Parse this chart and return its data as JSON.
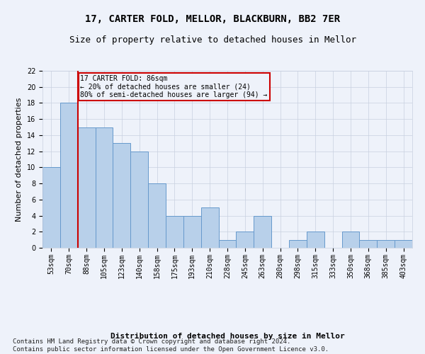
{
  "title": "17, CARTER FOLD, MELLOR, BLACKBURN, BB2 7ER",
  "subtitle": "Size of property relative to detached houses in Mellor",
  "xlabel": "Distribution of detached houses by size in Mellor",
  "ylabel": "Number of detached properties",
  "categories": [
    "53sqm",
    "70sqm",
    "88sqm",
    "105sqm",
    "123sqm",
    "140sqm",
    "158sqm",
    "175sqm",
    "193sqm",
    "210sqm",
    "228sqm",
    "245sqm",
    "263sqm",
    "280sqm",
    "298sqm",
    "315sqm",
    "333sqm",
    "350sqm",
    "368sqm",
    "385sqm",
    "403sqm"
  ],
  "values": [
    10,
    18,
    15,
    15,
    13,
    12,
    8,
    4,
    4,
    5,
    1,
    2,
    4,
    0,
    1,
    2,
    0,
    2,
    1,
    1,
    1
  ],
  "bar_color": "#b8d0ea",
  "bar_edgecolor": "#6699cc",
  "vline_x": 1.5,
  "vline_color": "#cc0000",
  "annotation_text": "17 CARTER FOLD: 86sqm\n← 20% of detached houses are smaller (24)\n80% of semi-detached houses are larger (94) →",
  "annotation_box_color": "#cc0000",
  "ylim": [
    0,
    22
  ],
  "yticks": [
    0,
    2,
    4,
    6,
    8,
    10,
    12,
    14,
    16,
    18,
    20,
    22
  ],
  "footer": "Contains HM Land Registry data © Crown copyright and database right 2024.\nContains public sector information licensed under the Open Government Licence v3.0.",
  "title_fontsize": 10,
  "subtitle_fontsize": 9,
  "axis_label_fontsize": 8,
  "tick_fontsize": 7,
  "footer_fontsize": 6.5,
  "background_color": "#eef2fa",
  "grid_color": "#c8d0e0"
}
